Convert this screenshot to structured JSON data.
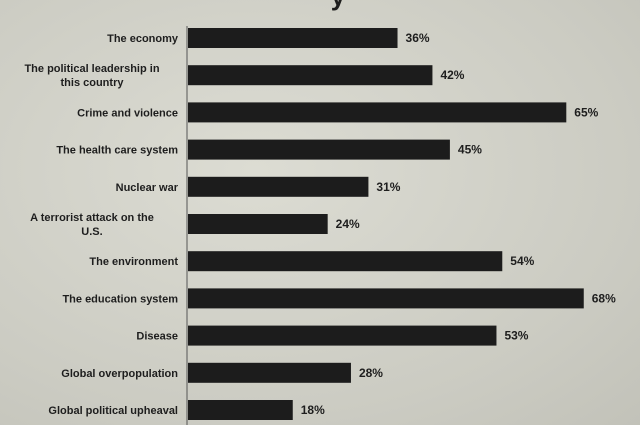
{
  "chart_data": {
    "type": "bar",
    "orientation": "horizontal",
    "title": "",
    "title_fragment": "y",
    "xlim": [
      0,
      70
    ],
    "grid": false,
    "categories": [
      "The economy",
      "The political leadership in this country",
      "Crime and violence",
      "The health care system",
      "Nuclear war",
      "A terrorist attack on the U.S.",
      "The environment",
      "The education system",
      "Disease",
      "Global overpopulation",
      "Global political upheaval"
    ],
    "values": [
      36,
      42,
      65,
      45,
      31,
      24,
      54,
      68,
      53,
      28,
      18
    ],
    "value_labels": [
      "36%",
      "42%",
      "65%",
      "45%",
      "31%",
      "24%",
      "54%",
      "68%",
      "53%",
      "28%",
      "18%"
    ],
    "bar_color": "#1c1c1c",
    "text_color": "#1e1e1e"
  }
}
